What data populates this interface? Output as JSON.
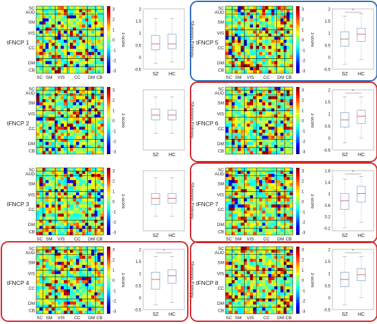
{
  "figure": {
    "colorbar_ticks": [
      "3",
      "2",
      "1",
      "0",
      "-1",
      "-2",
      "-3"
    ],
    "colorbar_label": "z-score",
    "row_labels": [
      "SC",
      "AUD",
      "SM",
      "VIS",
      "CC",
      "DM",
      "CB"
    ],
    "col_labels": [
      "SC",
      "SM",
      "VIS",
      "CC",
      "DM",
      "CB"
    ],
    "box_ylabel": "Shannon Entropy",
    "group_labels": [
      "SZ",
      "HC"
    ],
    "significance_mark": "*",
    "colors": {
      "blue_box": "#2e6db8",
      "red_box": "#d42a2a"
    },
    "panels": [
      {
        "name": "tFNCP 1",
        "highlight": "none",
        "significant": false,
        "y_ticks": [
          "2",
          "1.5",
          "1",
          "0.5",
          "0",
          "-0.5"
        ],
        "y_range": [
          -0.5,
          2
        ],
        "show_row_labels": true,
        "show_col_labels": true,
        "SZ": {
          "q1": 0.3,
          "median": 0.55,
          "q3": 0.9,
          "low": -0.25,
          "high": 1.6
        },
        "HC": {
          "q1": 0.35,
          "median": 0.55,
          "q3": 0.95,
          "low": -0.2,
          "high": 1.6
        }
      },
      {
        "name": "tFNCP 2",
        "highlight": "none",
        "significant": false,
        "y_ticks": [],
        "y_range": [
          -0.5,
          2
        ],
        "show_row_labels": true,
        "show_col_labels": false,
        "SZ": {
          "q1": 0.75,
          "median": 0.95,
          "q3": 1.2,
          "low": 0.2,
          "high": 1.7
        },
        "HC": {
          "q1": 0.75,
          "median": 0.95,
          "q3": 1.15,
          "low": 0.2,
          "high": 1.7
        }
      },
      {
        "name": "tFNCP 3",
        "highlight": "none",
        "significant": false,
        "y_ticks": [],
        "y_range": [
          -0.5,
          2
        ],
        "show_row_labels": true,
        "show_col_labels": true,
        "SZ": {
          "q1": 0.6,
          "median": 0.85,
          "q3": 1.05,
          "low": 0.1,
          "high": 1.7
        },
        "HC": {
          "q1": 0.65,
          "median": 0.85,
          "q3": 1.05,
          "low": 0.1,
          "high": 1.7
        }
      },
      {
        "name": "tFNCP 4",
        "highlight": "red",
        "significant": true,
        "y_ticks": [
          "2",
          "1.5",
          "1",
          "0.5",
          "0",
          "-0.5"
        ],
        "y_range": [
          -0.5,
          2
        ],
        "show_row_labels": true,
        "show_col_labels": true,
        "SZ": {
          "q1": 0.35,
          "median": 0.75,
          "q3": 1.05,
          "low": -0.3,
          "high": 1.7
        },
        "HC": {
          "q1": 0.6,
          "median": 0.9,
          "q3": 1.15,
          "low": -0.2,
          "high": 1.7
        }
      },
      {
        "name": "tFNCP 5",
        "highlight": "blue",
        "significant": true,
        "y_ticks": [
          "2",
          "1.5",
          "1",
          "0.5",
          "0",
          "-0.5"
        ],
        "y_range": [
          -0.5,
          2
        ],
        "show_row_labels": true,
        "show_col_labels": true,
        "SZ": {
          "q1": 0.45,
          "median": 0.75,
          "q3": 1.05,
          "low": -0.3,
          "high": 1.7
        },
        "HC": {
          "q1": 0.65,
          "median": 0.95,
          "q3": 1.2,
          "low": -0.1,
          "high": 1.8
        }
      },
      {
        "name": "tFNCP 6",
        "highlight": "red",
        "significant": true,
        "y_ticks": [
          "2",
          "1.5",
          "1",
          "0.5",
          "0",
          "-0.5"
        ],
        "y_range": [
          -0.5,
          2
        ],
        "show_row_labels": true,
        "show_col_labels": false,
        "SZ": {
          "q1": 0.45,
          "median": 0.75,
          "q3": 1.05,
          "low": -0.2,
          "high": 1.7
        },
        "HC": {
          "q1": 0.6,
          "median": 0.9,
          "q3": 1.15,
          "low": 0.0,
          "high": 1.7
        }
      },
      {
        "name": "tFNCP 7",
        "highlight": "red",
        "significant": true,
        "y_ticks": [
          "1.8",
          "1.4",
          "1",
          "0.6",
          "0.2",
          "-0.2"
        ],
        "y_range": [
          -0.3,
          1.8
        ],
        "show_row_labels": true,
        "show_col_labels": true,
        "SZ": {
          "q1": 0.45,
          "median": 0.75,
          "q3": 1.0,
          "low": -0.2,
          "high": 1.5
        },
        "HC": {
          "q1": 0.7,
          "median": 1.0,
          "q3": 1.25,
          "low": 0.0,
          "high": 1.6
        }
      },
      {
        "name": "tFNCP 8",
        "highlight": "red",
        "significant": true,
        "y_ticks": [
          "2",
          "1.5",
          "1",
          "0.5",
          "0",
          "-0.5"
        ],
        "y_range": [
          -0.5,
          2
        ],
        "show_row_labels": true,
        "show_col_labels": true,
        "SZ": {
          "q1": 0.45,
          "median": 0.75,
          "q3": 1.05,
          "low": -0.3,
          "high": 1.7
        },
        "HC": {
          "q1": 0.7,
          "median": 0.95,
          "q3": 1.2,
          "low": 0.0,
          "high": 1.7
        }
      }
    ]
  }
}
